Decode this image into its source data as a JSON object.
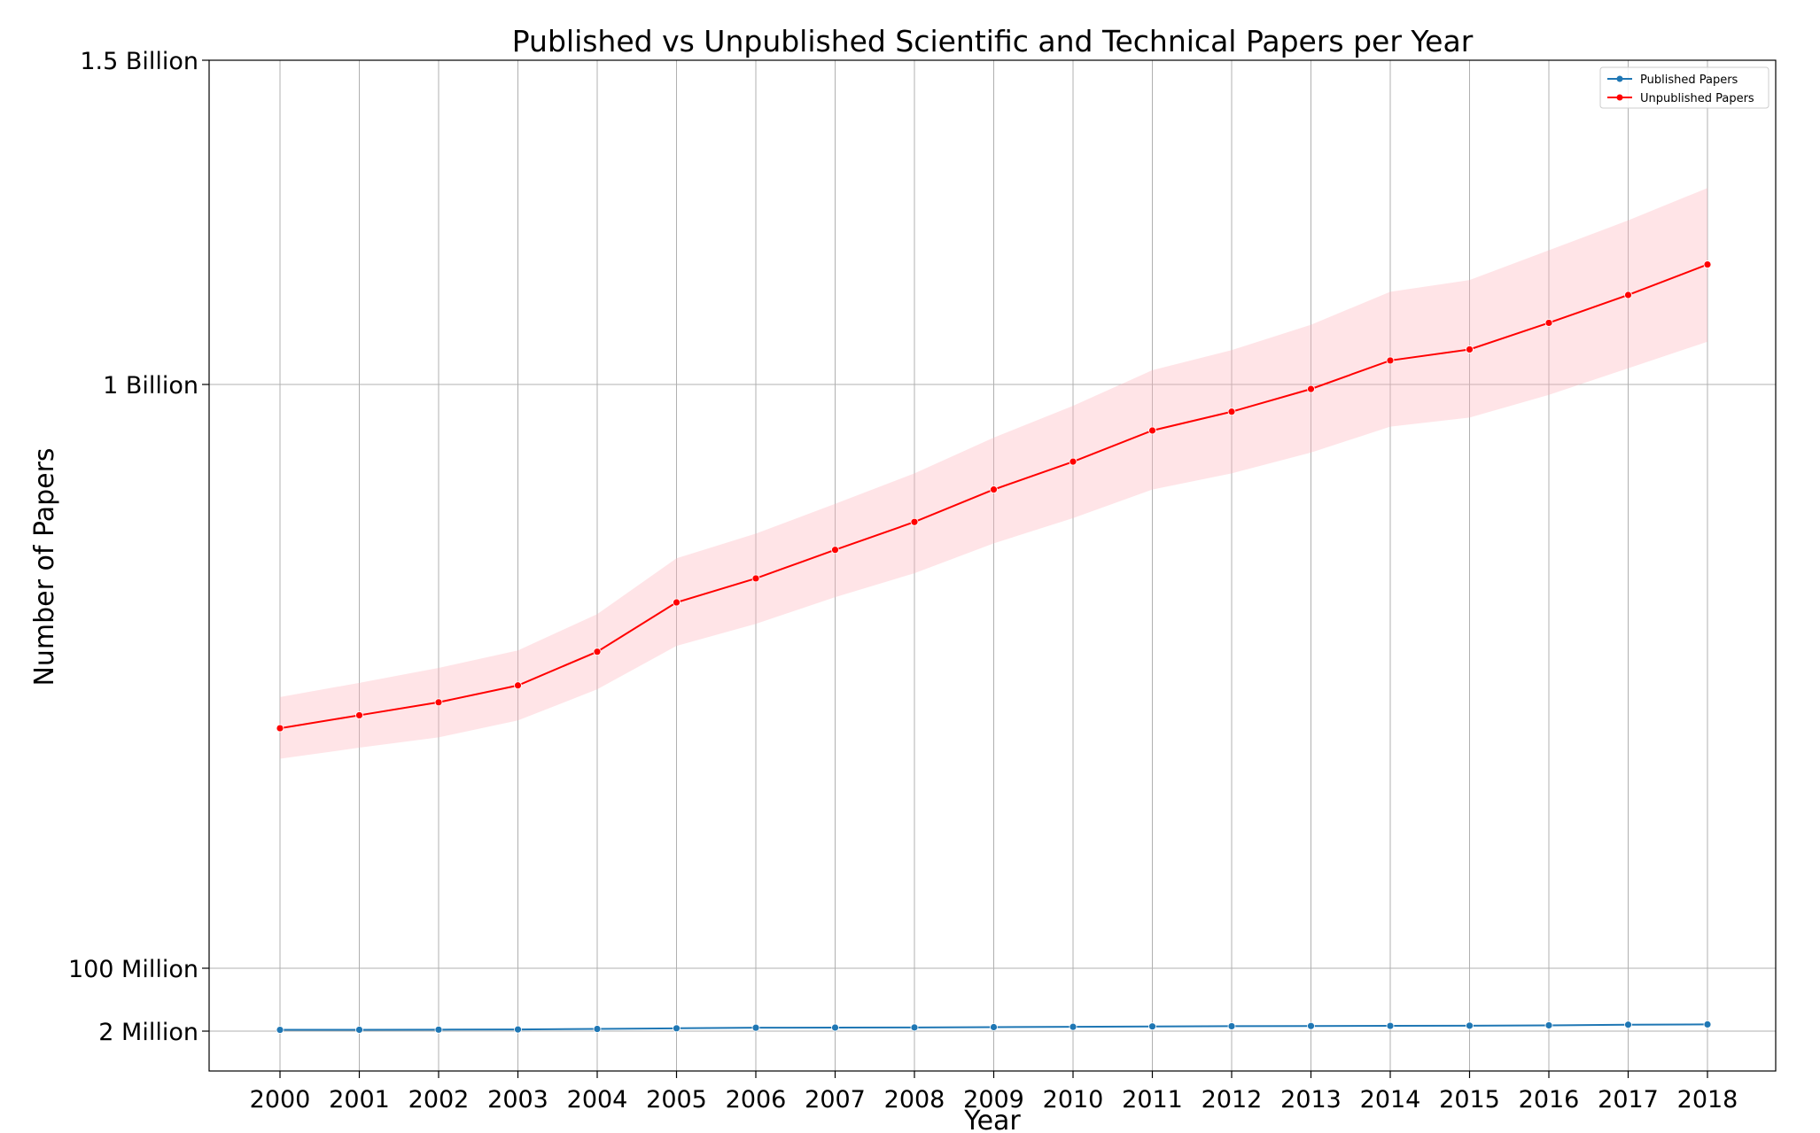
{
  "chart_data": {
    "type": "line",
    "title": "Published vs Unpublished Scientific and Technical Papers per Year",
    "xlabel": "Year",
    "ylabel": "Number of Papers",
    "x": [
      "2000",
      "2001",
      "2002",
      "2003",
      "2004",
      "2005",
      "2006",
      "2007",
      "2008",
      "2009",
      "2010",
      "2011",
      "2012",
      "2013",
      "2014",
      "2015",
      "2016",
      "2017",
      "2018"
    ],
    "y_ticks": [
      {
        "value": 2000000,
        "label": "2 Million"
      },
      {
        "value": 100000000,
        "label": "100 Million"
      },
      {
        "value": 1000000000,
        "label": "1 Billion"
      },
      {
        "value": 1500000000,
        "label": "1.5 Billion"
      }
    ],
    "ylim": [
      -60000000,
      1500000000
    ],
    "grid": true,
    "legend_position": "top-right",
    "series": [
      {
        "name": "Published Papers",
        "color": "#1f77b4",
        "values": [
          4000000,
          4100000,
          4300000,
          4600000,
          5400000,
          6400000,
          7300000,
          7500000,
          7700000,
          8200000,
          8700000,
          9300000,
          9700000,
          10000000,
          10200000,
          10500000,
          11000000,
          12000000,
          12500000
        ]
      },
      {
        "name": "Unpublished Papers",
        "color": "#ff0000",
        "band_color": "#ffb3ba",
        "values": [
          470000000,
          490000000,
          510000000,
          536000000,
          588000000,
          664000000,
          701000000,
          745000000,
          788000000,
          838000000,
          881000000,
          929000000,
          958000000,
          993000000,
          1037000000,
          1054000000,
          1095000000,
          1138000000,
          1185000000
        ],
        "band_upper": [
          518000000,
          540000000,
          563000000,
          590000000,
          646000000,
          732000000,
          770000000,
          816000000,
          863000000,
          918000000,
          967000000,
          1022000000,
          1053000000,
          1092000000,
          1143000000,
          1161000000,
          1207000000,
          1253000000,
          1303000000
        ],
        "band_lower": [
          423000000,
          440000000,
          456000000,
          482000000,
          530000000,
          597000000,
          631000000,
          672000000,
          709000000,
          755000000,
          794000000,
          838000000,
          863000000,
          895000000,
          935000000,
          949000000,
          984000000,
          1025000000,
          1066000000
        ]
      }
    ]
  }
}
